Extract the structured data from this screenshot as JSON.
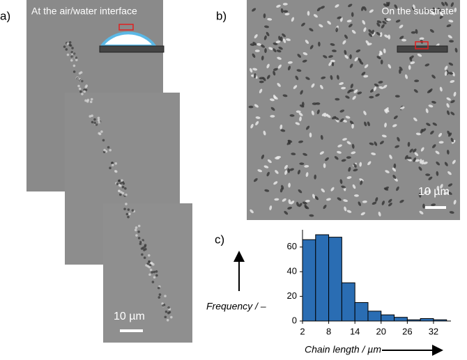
{
  "panels": {
    "a": {
      "label": "a)",
      "caption": "At the air/water interface",
      "scale_bar": "10 µm"
    },
    "b": {
      "label": "b)",
      "caption": "On the substrate",
      "scale_bar": "10 µm"
    }
  },
  "chart_data": {
    "type": "histogram",
    "label": "c)",
    "bins": [
      2,
      5,
      8,
      11,
      14,
      17,
      20,
      23,
      26,
      29,
      32,
      35
    ],
    "values": [
      66,
      70,
      68,
      31,
      15,
      8,
      5,
      3,
      1,
      2,
      1
    ],
    "color": "#2a6db3",
    "xlim": [
      2,
      36
    ],
    "ylim": [
      0,
      74
    ],
    "xticks": [
      2,
      8,
      14,
      20,
      26,
      32
    ],
    "yticks": [
      0,
      20,
      40,
      60
    ],
    "xlabel": "Chain length / µm",
    "ylabel": "Frequency / –"
  }
}
